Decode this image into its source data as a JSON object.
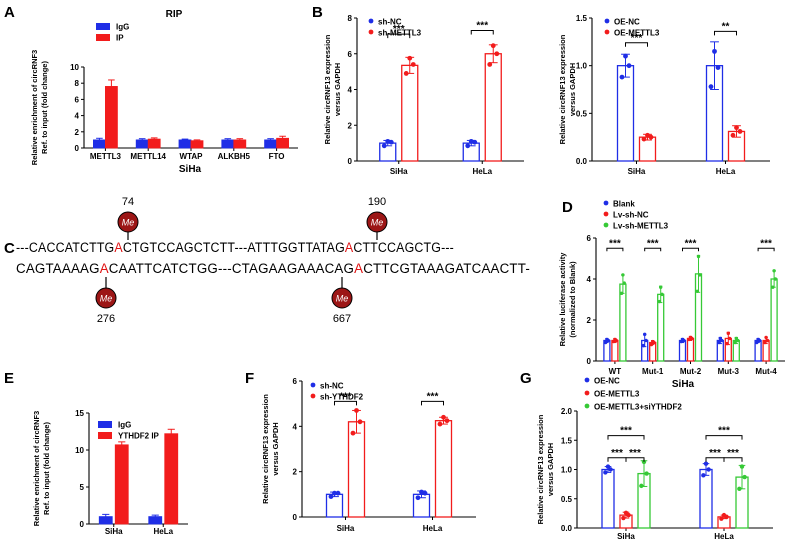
{
  "colors": {
    "blue": "#1f2ee6",
    "red": "#f21c1c",
    "green": "#36c936",
    "darkred": "#9c1616"
  },
  "chart_data": [
    {
      "panel": "A",
      "type": "bar",
      "title": "RIP",
      "xlabel": "SiHa",
      "ylabel": "Relative enrichment of circRNF3 Ref. to input (fold change)",
      "ylim": [
        0,
        10
      ],
      "yticks": [
        0,
        2,
        4,
        6,
        8,
        10
      ],
      "categories": [
        "METTL3",
        "METTL14",
        "WTAP",
        "ALKBH5",
        "FTO"
      ],
      "legend_position": "top-left",
      "series": [
        {
          "name": "IgG",
          "color": "blue",
          "values": [
            1.0,
            1.0,
            1.0,
            1.0,
            1.0
          ],
          "errors": [
            0.2,
            0.15,
            0.1,
            0.15,
            0.15
          ]
        },
        {
          "name": "IP",
          "color": "red",
          "values": [
            7.6,
            1.1,
            0.9,
            1.0,
            1.2
          ],
          "errors": [
            0.8,
            0.15,
            0.1,
            0.15,
            0.25
          ]
        }
      ],
      "significance": []
    },
    {
      "panel": "B1",
      "type": "bar",
      "title": "",
      "xlabel": "",
      "ylabel": "Relative circRNF13 expression versus GAPDH",
      "ylim": [
        0,
        8
      ],
      "yticks": [
        0,
        2,
        4,
        6,
        8
      ],
      "categories": [
        "SiHa",
        "HeLa"
      ],
      "legend_position": "top-left",
      "series": [
        {
          "name": "sh-NC",
          "color": "blue",
          "values": [
            1.0,
            1.0
          ],
          "errors": [
            0.15,
            0.15
          ],
          "points": [
            [
              0.85,
              1.05,
              1.1
            ],
            [
              0.85,
              1.05,
              1.1
            ]
          ]
        },
        {
          "name": "sh-METTL3",
          "color": "red",
          "values": [
            5.35,
            6.0
          ],
          "errors": [
            0.45,
            0.5
          ],
          "points": [
            [
              4.9,
              5.4,
              5.75
            ],
            [
              5.4,
              6.0,
              6.45
            ]
          ]
        }
      ],
      "significance": [
        {
          "category": 0,
          "label": "***",
          "level": 7.1
        },
        {
          "category": 1,
          "label": "***",
          "level": 7.3
        }
      ]
    },
    {
      "panel": "B2",
      "type": "bar",
      "title": "",
      "xlabel": "",
      "ylabel": "Relative circRNF13 expression versus GAPDH",
      "ylim": [
        0,
        1.5
      ],
      "yticks": [
        0.0,
        0.5,
        1.0,
        1.5
      ],
      "categories": [
        "SiHa",
        "HeLa"
      ],
      "legend_position": "top-left",
      "series": [
        {
          "name": "OE-NC",
          "color": "blue",
          "values": [
            1.0,
            1.0
          ],
          "errors": [
            0.12,
            0.25
          ],
          "points": [
            [
              0.88,
              1.0,
              1.1
            ],
            [
              0.78,
              0.98,
              1.15
            ]
          ]
        },
        {
          "name": "OE-METTL3",
          "color": "red",
          "values": [
            0.25,
            0.31
          ],
          "errors": [
            0.03,
            0.06
          ],
          "points": [
            [
              0.23,
              0.25,
              0.27
            ],
            [
              0.27,
              0.31,
              0.35
            ]
          ]
        }
      ],
      "significance": [
        {
          "category": 0,
          "label": "***",
          "level": 1.24
        },
        {
          "category": 1,
          "label": "**",
          "level": 1.36
        }
      ]
    },
    {
      "panel": "D",
      "type": "bar",
      "title": "",
      "xlabel": "SiHa",
      "ylabel": "Relative luciferase activity (normalized to Blank)",
      "ylim": [
        0,
        6
      ],
      "yticks": [
        0,
        2,
        4,
        6
      ],
      "categories": [
        "WT",
        "Mut-1",
        "Mut-2",
        "Mut-3",
        "Mut-4"
      ],
      "legend_position": "top-left",
      "series": [
        {
          "name": "Blank",
          "color": "blue",
          "values": [
            1.0,
            1.0,
            1.0,
            1.0,
            1.0
          ],
          "errors": [
            0.1,
            0.3,
            0.1,
            0.15,
            0.1
          ],
          "points": [
            [
              0.9,
              1.0,
              1.05
            ],
            [
              0.75,
              1.0,
              1.3
            ],
            [
              0.95,
              1.0,
              1.05
            ],
            [
              0.9,
              1.0,
              1.1
            ],
            [
              0.9,
              1.0,
              1.05
            ]
          ]
        },
        {
          "name": "Lv-sh-NC",
          "color": "red",
          "values": [
            1.0,
            0.9,
            1.1,
            1.1,
            1.0
          ],
          "errors": [
            0.1,
            0.1,
            0.1,
            0.3,
            0.15
          ],
          "points": [
            [
              0.95,
              1.0,
              1.05
            ],
            [
              0.8,
              0.9,
              0.95
            ],
            [
              1.05,
              1.1,
              1.15
            ],
            [
              0.85,
              1.1,
              1.35
            ],
            [
              0.9,
              1.0,
              1.15
            ]
          ]
        },
        {
          "name": "Lv-sh-METTL3",
          "color": "green",
          "values": [
            3.75,
            3.25,
            4.25,
            1.0,
            4.0
          ],
          "errors": [
            0.45,
            0.4,
            0.9,
            0.15,
            0.4
          ],
          "points": [
            [
              3.3,
              3.8,
              4.2
            ],
            [
              2.9,
              3.25,
              3.6
            ],
            [
              3.4,
              4.2,
              5.1
            ],
            [
              0.9,
              1.0,
              1.1
            ],
            [
              3.6,
              4.0,
              4.4
            ]
          ]
        }
      ],
      "significance": [
        {
          "category": 0,
          "label": "***",
          "level": 5.5
        },
        {
          "category": 1,
          "label": "***",
          "level": 5.5
        },
        {
          "category": 2,
          "label": "***",
          "level": 5.5
        },
        {
          "category": 4,
          "label": "***",
          "level": 5.5
        }
      ]
    },
    {
      "panel": "E",
      "type": "bar",
      "title": "",
      "xlabel": "",
      "ylabel": "Relative enrichment of circRNF3 Ref. to input (fold change)",
      "ylim": [
        0,
        15
      ],
      "yticks": [
        0,
        5,
        10,
        15
      ],
      "categories": [
        "SiHa",
        "HeLa"
      ],
      "legend_position": "top-left",
      "series": [
        {
          "name": "IgG",
          "color": "blue",
          "values": [
            1.0,
            1.0
          ],
          "errors": [
            0.3,
            0.2
          ]
        },
        {
          "name": "YTHDF2 IP",
          "color": "red",
          "values": [
            10.7,
            12.2
          ],
          "errors": [
            0.4,
            0.6
          ]
        }
      ],
      "significance": []
    },
    {
      "panel": "F",
      "type": "bar",
      "title": "",
      "xlabel": "",
      "ylabel": "Relative circRNF13 expression versus GAPDH",
      "ylim": [
        0,
        6
      ],
      "yticks": [
        0,
        2,
        4,
        6
      ],
      "categories": [
        "SiHa",
        "HeLa"
      ],
      "legend_position": "top-left",
      "series": [
        {
          "name": "sh-NC",
          "color": "blue",
          "values": [
            1.0,
            1.0
          ],
          "errors": [
            0.1,
            0.15
          ],
          "points": [
            [
              0.9,
              1.05,
              1.05
            ],
            [
              0.85,
              1.05,
              1.1
            ]
          ]
        },
        {
          "name": "sh-YTHDF2",
          "color": "red",
          "values": [
            4.2,
            4.25
          ],
          "errors": [
            0.5,
            0.15
          ],
          "points": [
            [
              3.7,
              4.2,
              4.7
            ],
            [
              4.1,
              4.25,
              4.4
            ]
          ]
        }
      ],
      "significance": [
        {
          "category": 0,
          "label": "***",
          "level": 5.1
        },
        {
          "category": 1,
          "label": "***",
          "level": 5.1
        }
      ]
    },
    {
      "panel": "G",
      "type": "bar",
      "title": "",
      "xlabel": "",
      "ylabel": "Relative circRNF13 expression versus GAPDH",
      "ylim": [
        0,
        2.0
      ],
      "yticks": [
        0.0,
        0.5,
        1.0,
        1.5,
        2.0
      ],
      "categories": [
        "SiHa",
        "HeLa"
      ],
      "legend_position": "top-left",
      "series": [
        {
          "name": "OE-NC",
          "color": "blue",
          "values": [
            1.0,
            1.0
          ],
          "errors": [
            0.05,
            0.1
          ],
          "points": [
            [
              0.95,
              1.0,
              1.05
            ],
            [
              0.9,
              1.0,
              1.1
            ]
          ]
        },
        {
          "name": "OE-METTL3",
          "color": "red",
          "values": [
            0.22,
            0.19
          ],
          "errors": [
            0.05,
            0.03
          ],
          "points": [
            [
              0.17,
              0.22,
              0.26
            ],
            [
              0.16,
              0.19,
              0.22
            ]
          ]
        },
        {
          "name": "OE-METTL3+siYTHDF2",
          "color": "green",
          "values": [
            0.93,
            0.87
          ],
          "errors": [
            0.22,
            0.2
          ],
          "points": [
            [
              0.72,
              0.93,
              1.13
            ],
            [
              0.67,
              0.87,
              1.05
            ]
          ]
        }
      ],
      "significance": [
        {
          "from": [
            0,
            0
          ],
          "to": [
            0,
            1
          ],
          "label": "***",
          "level": 1.2
        },
        {
          "from": [
            0,
            1
          ],
          "to": [
            0,
            2
          ],
          "label": "***",
          "level": 1.2
        },
        {
          "from": [
            1,
            0
          ],
          "to": [
            1,
            1
          ],
          "label": "***",
          "level": 1.2
        },
        {
          "from": [
            1,
            1
          ],
          "to": [
            1,
            2
          ],
          "label": "***",
          "level": 1.2
        },
        {
          "from": [
            0,
            0
          ],
          "to": [
            0,
            2
          ],
          "label": "***",
          "level": 1.58
        },
        {
          "from": [
            1,
            0
          ],
          "to": [
            1,
            2
          ],
          "label": "***",
          "level": 1.58
        }
      ]
    }
  ],
  "panel_c": {
    "label": "C",
    "line1": {
      "pre": "---CACCATCTTG",
      "hl1": "A",
      "mid": "CTGTCCAGCTCTT---ATTTGGTTATAG",
      "hl2": "A",
      "post": "CTTCCAGCTG---"
    },
    "line2": {
      "pre": "CAGTAAAAG",
      "hl1": "A",
      "mid": "CAATTCATCTGG---CTAGAAGAAACAG",
      "hl2": "A",
      "post": "CTTCGTAAAGATCAACTT-"
    },
    "sites": [
      {
        "position": "74",
        "mark": "Me"
      },
      {
        "position": "190",
        "mark": "Me"
      },
      {
        "position": "276",
        "mark": "Me"
      },
      {
        "position": "667",
        "mark": "Me"
      }
    ]
  },
  "panel_labels": [
    "A",
    "B",
    "C",
    "D",
    "E",
    "F",
    "G"
  ]
}
